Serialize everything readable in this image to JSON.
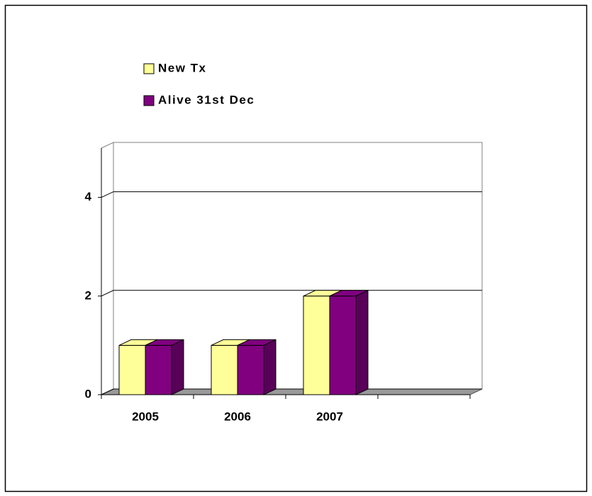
{
  "chart_data": {
    "type": "bar3d",
    "categories": [
      "2005",
      "2006",
      "2007",
      null
    ],
    "series": [
      {
        "name": "New Tx",
        "color": "#ffff99",
        "values": [
          1,
          1,
          2,
          null
        ]
      },
      {
        "name": "Alive 31st Dec",
        "color": "#800080",
        "values": [
          1,
          1,
          2,
          null
        ]
      }
    ],
    "ylim": [
      0,
      5
    ],
    "yticks": [
      0,
      2,
      4
    ],
    "grid": true,
    "legend": "top-left"
  }
}
